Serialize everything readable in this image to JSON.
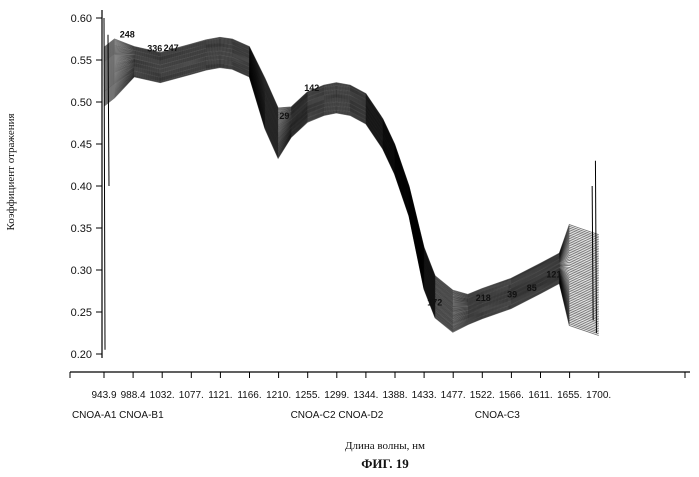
{
  "chart_data": {
    "type": "line",
    "xlabel": "Длина волны, нм",
    "ylabel": "Коэффициент отражения",
    "figure_caption": "ФИГ. 19",
    "ylim": [
      0.2,
      0.6
    ],
    "y_ticks": [
      "0.60",
      "0.55",
      "0.50",
      "0.45",
      "0.40",
      "0.35",
      "0.30",
      "0.25",
      "0.20"
    ],
    "x_ticks": [
      "943.9",
      "988.4",
      "1032.",
      "1077.",
      "1121.",
      "1166.",
      "1210.",
      "1255.",
      "1299.",
      "1344.",
      "1388.",
      "1433.",
      "1477.",
      "1522.",
      "1566.",
      "1611.",
      "1655.",
      "1700."
    ],
    "sample_labels": [
      {
        "text": "CNOA-A1 CNOA-B1",
        "x": 965
      },
      {
        "text": "CNOA-C2 CNOA-D2",
        "x": 1300
      },
      {
        "text": "CNOA-C3",
        "x": 1545
      }
    ],
    "curve_annotations": [
      {
        "text": "248",
        "x": 968,
        "y": 0.577
      },
      {
        "text": "336",
        "x": 1010,
        "y": 0.56
      },
      {
        "text": "247",
        "x": 1035,
        "y": 0.561
      },
      {
        "text": "142",
        "x": 1250,
        "y": 0.513
      },
      {
        "text": "29",
        "x": 1212,
        "y": 0.48
      },
      {
        "text": "172",
        "x": 1438,
        "y": 0.258
      },
      {
        "text": "218",
        "x": 1512,
        "y": 0.263
      },
      {
        "text": "39",
        "x": 1560,
        "y": 0.267
      },
      {
        "text": "85",
        "x": 1590,
        "y": 0.275
      },
      {
        "text": "121",
        "x": 1620,
        "y": 0.291
      }
    ],
    "series": [
      {
        "x": [
          943.9,
          960,
          990,
          1030,
          1077,
          1100,
          1121,
          1140,
          1166,
          1190,
          1210,
          1230,
          1255,
          1280,
          1299,
          1320,
          1344,
          1370,
          1388,
          1410,
          1433,
          1450,
          1477,
          1500,
          1522,
          1566,
          1611,
          1640,
          1655,
          1670,
          1700
        ],
        "y": [
          0.53,
          0.54,
          0.548,
          0.541,
          0.551,
          0.556,
          0.559,
          0.557,
          0.548,
          0.498,
          0.463,
          0.476,
          0.494,
          0.502,
          0.505,
          0.502,
          0.492,
          0.462,
          0.432,
          0.382,
          0.302,
          0.268,
          0.251,
          0.253,
          0.26,
          0.272,
          0.29,
          0.302,
          0.294,
          0.29,
          0.282
        ]
      }
    ]
  }
}
